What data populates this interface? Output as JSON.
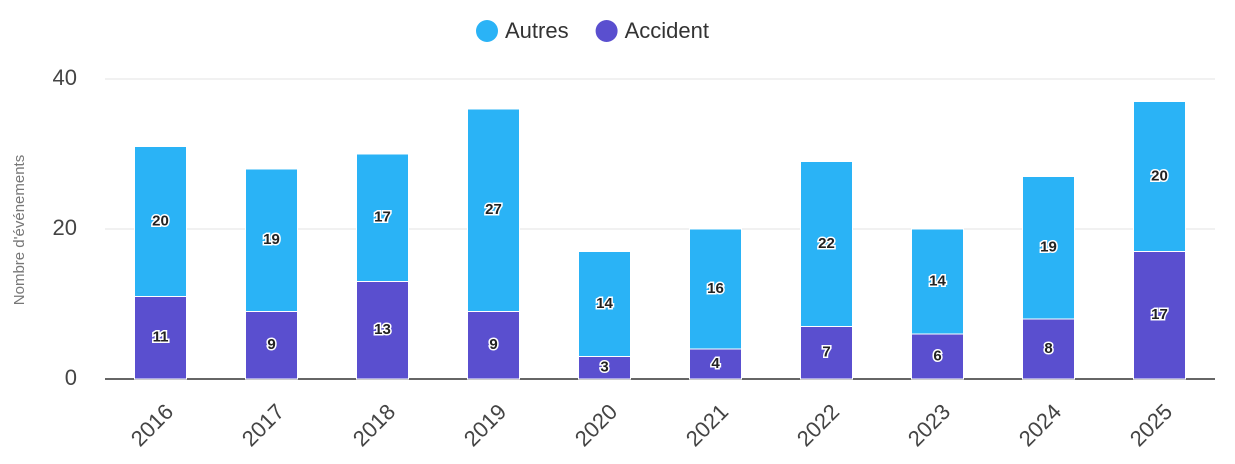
{
  "chart_data": {
    "type": "stacked_bar",
    "categories": [
      "2016",
      "2017",
      "2018",
      "2019",
      "2020",
      "2021",
      "2022",
      "2023",
      "2024",
      "2025"
    ],
    "series": [
      {
        "name": "Accident",
        "color": "#5a4fcf",
        "values": [
          11,
          9,
          13,
          9,
          3,
          4,
          7,
          6,
          8,
          17
        ]
      },
      {
        "name": "Autres",
        "color": "#2ab3f6",
        "values": [
          20,
          19,
          17,
          27,
          14,
          16,
          22,
          14,
          19,
          20
        ]
      }
    ],
    "y_label": "Nombre d'événements",
    "ylim": [
      0,
      40
    ],
    "yticks": [
      0,
      20,
      40
    ],
    "grid": true,
    "legend": "top"
  }
}
